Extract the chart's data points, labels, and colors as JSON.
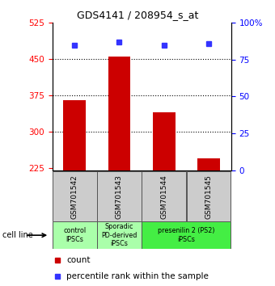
{
  "title": "GDS4141 / 208954_s_at",
  "samples": [
    "GSM701542",
    "GSM701543",
    "GSM701544",
    "GSM701545"
  ],
  "bar_values": [
    365,
    455,
    340,
    245
  ],
  "percentile_values": [
    85,
    87,
    85,
    86
  ],
  "bar_color": "#cc0000",
  "dot_color": "#3333ff",
  "ylim_left": [
    220,
    525
  ],
  "ylim_right": [
    0,
    100
  ],
  "yticks_left": [
    225,
    300,
    375,
    450,
    525
  ],
  "yticks_right": [
    0,
    25,
    50,
    75,
    100
  ],
  "hlines": [
    300,
    375,
    450
  ],
  "group_defs": [
    {
      "indices": [
        0
      ],
      "label": "control\nIPSCs",
      "color": "#aaffaa"
    },
    {
      "indices": [
        1
      ],
      "label": "Sporadic\nPD-derived\niPSCs",
      "color": "#aaffaa"
    },
    {
      "indices": [
        2,
        3
      ],
      "label": "presenilin 2 (PS2)\niPSCs",
      "color": "#44ee44"
    }
  ],
  "legend_count_label": "count",
  "legend_percentile_label": "percentile rank within the sample",
  "cell_line_label": "cell line"
}
